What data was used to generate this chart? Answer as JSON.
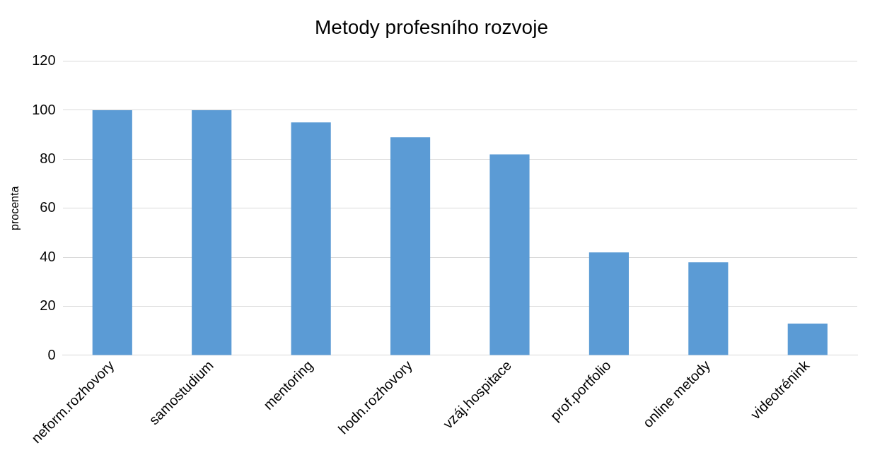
{
  "chart_data": {
    "type": "bar",
    "title": "Metody profesního rozvoje",
    "ylabel": "procenta",
    "categories": [
      "neform.rozhovory",
      "samostudium",
      "mentoring",
      "hodn.rozhovory",
      "vzáj.hospitace",
      "prof.portfolio",
      "online metody",
      "videotrénink"
    ],
    "values": [
      100,
      100,
      95,
      89,
      82,
      42,
      38,
      13
    ],
    "color": "#5b9bd5",
    "ylim": [
      0,
      120
    ],
    "yticks": [
      0,
      20,
      40,
      60,
      80,
      100,
      120
    ],
    "grid": "y",
    "legend": false
  }
}
